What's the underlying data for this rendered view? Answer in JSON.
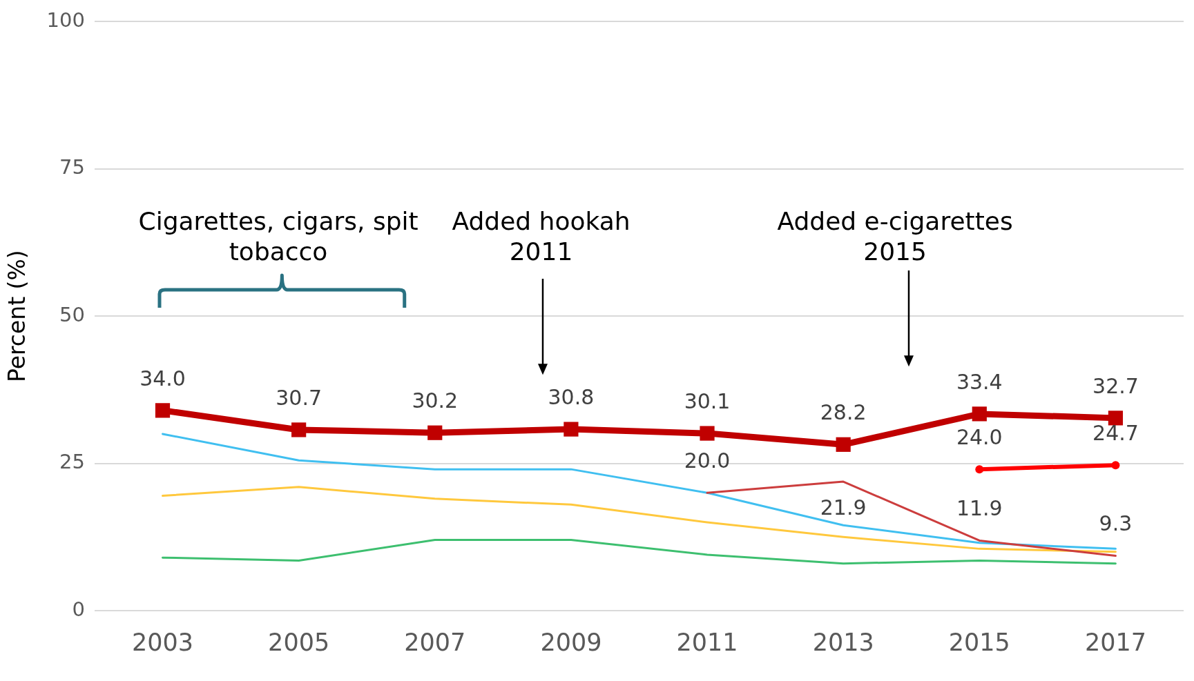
{
  "chart_data": {
    "type": "line",
    "ylabel": "Percent (%)",
    "categories": [
      "2003",
      "2005",
      "2007",
      "2009",
      "2011",
      "2013",
      "2015",
      "2017"
    ],
    "series": [
      {
        "color": "#c00000",
        "marker": "square",
        "values": [
          34.0,
          30.7,
          30.2,
          30.8,
          30.1,
          28.2,
          33.4,
          32.7
        ],
        "value_labels": [
          "34.0",
          "30.7",
          "30.2",
          "30.8",
          "30.1",
          "28.2",
          "33.4",
          "32.7"
        ]
      },
      {
        "color": "#ff0000",
        "marker": "circle",
        "values": [
          null,
          null,
          null,
          null,
          null,
          null,
          24.0,
          24.7
        ],
        "value_labels": [
          null,
          null,
          null,
          null,
          null,
          null,
          "24.0",
          "24.7"
        ]
      },
      {
        "color": "#cc3d3d",
        "values": [
          null,
          null,
          null,
          null,
          20.0,
          21.9,
          11.9,
          9.3
        ],
        "value_labels": [
          null,
          null,
          null,
          null,
          "20.0",
          "21.9",
          "11.9",
          "9.3"
        ]
      },
      {
        "color": "#40bff0",
        "values": [
          30,
          25.5,
          24,
          24,
          20,
          14.5,
          11.5,
          10.5
        ]
      },
      {
        "color": "#ffc83d",
        "values": [
          19.5,
          21,
          19,
          18,
          15,
          12.5,
          10.5,
          10
        ]
      },
      {
        "color": "#3dbf6f",
        "values": [
          9,
          8.5,
          12,
          12,
          9.5,
          8,
          8.5,
          8
        ]
      }
    ],
    "ylim": [
      0,
      100
    ],
    "yticks": [
      0,
      25,
      50,
      75,
      100
    ],
    "grid": "y",
    "legend": false,
    "marker": "none",
    "annotations": [
      "Cigarettes, cigars, spit tobacco",
      "Added hookah 2011",
      "Added e-cigarettes 2015"
    ]
  }
}
